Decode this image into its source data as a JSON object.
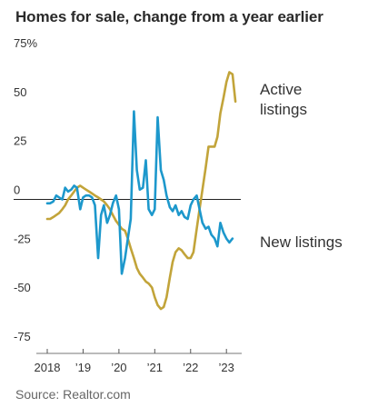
{
  "chart_data": {
    "type": "line",
    "title": "Homes for sale, change from a year earlier",
    "source": "Source: Realtor.com",
    "y_unit_label": "75%",
    "y_ticks": [
      {
        "value": 75,
        "label": "75%"
      },
      {
        "value": 50,
        "label": "50"
      },
      {
        "value": 25,
        "label": "25"
      },
      {
        "value": 0,
        "label": "0"
      },
      {
        "value": -25,
        "label": "-25"
      },
      {
        "value": -50,
        "label": "-50"
      },
      {
        "value": -75,
        "label": "-75"
      }
    ],
    "ylim": [
      -75,
      75
    ],
    "xlim": [
      2018,
      2023.35
    ],
    "x_ticks": [
      {
        "value": 2018,
        "label": "2018"
      },
      {
        "value": 2019,
        "label": "’19"
      },
      {
        "value": 2020,
        "label": "’20"
      },
      {
        "value": 2021,
        "label": "’21"
      },
      {
        "value": 2022,
        "label": "’22"
      },
      {
        "value": 2023,
        "label": "’23"
      }
    ],
    "grid": false,
    "series": [
      {
        "name_lines": [
          "Active",
          "listings"
        ],
        "color": "#c2a43a",
        "points": [
          [
            2018.0,
            -10
          ],
          [
            2018.08,
            -10
          ],
          [
            2018.17,
            -9
          ],
          [
            2018.25,
            -8
          ],
          [
            2018.33,
            -7
          ],
          [
            2018.42,
            -5
          ],
          [
            2018.5,
            -3
          ],
          [
            2018.58,
            0
          ],
          [
            2018.67,
            2
          ],
          [
            2018.75,
            4
          ],
          [
            2018.83,
            6
          ],
          [
            2018.92,
            7
          ],
          [
            2019.0,
            6
          ],
          [
            2019.08,
            5
          ],
          [
            2019.17,
            4
          ],
          [
            2019.25,
            3
          ],
          [
            2019.33,
            2
          ],
          [
            2019.42,
            1
          ],
          [
            2019.5,
            0
          ],
          [
            2019.58,
            -1
          ],
          [
            2019.67,
            -3
          ],
          [
            2019.75,
            -5
          ],
          [
            2019.83,
            -8
          ],
          [
            2019.92,
            -11
          ],
          [
            2020.0,
            -13
          ],
          [
            2020.08,
            -15
          ],
          [
            2020.17,
            -16
          ],
          [
            2020.25,
            -20
          ],
          [
            2020.33,
            -25
          ],
          [
            2020.42,
            -30
          ],
          [
            2020.5,
            -35
          ],
          [
            2020.58,
            -38
          ],
          [
            2020.67,
            -40
          ],
          [
            2020.75,
            -42
          ],
          [
            2020.83,
            -43
          ],
          [
            2020.92,
            -45
          ],
          [
            2021.0,
            -50
          ],
          [
            2021.08,
            -54
          ],
          [
            2021.17,
            -56
          ],
          [
            2021.25,
            -55
          ],
          [
            2021.33,
            -50
          ],
          [
            2021.42,
            -40
          ],
          [
            2021.5,
            -32
          ],
          [
            2021.58,
            -27
          ],
          [
            2021.67,
            -25
          ],
          [
            2021.75,
            -26
          ],
          [
            2021.83,
            -28
          ],
          [
            2021.92,
            -30
          ],
          [
            2022.0,
            -30
          ],
          [
            2022.08,
            -27
          ],
          [
            2022.17,
            -15
          ],
          [
            2022.25,
            -5
          ],
          [
            2022.33,
            5
          ],
          [
            2022.42,
            16
          ],
          [
            2022.5,
            27
          ],
          [
            2022.58,
            27
          ],
          [
            2022.67,
            27
          ],
          [
            2022.75,
            32
          ],
          [
            2022.83,
            44
          ],
          [
            2022.92,
            52
          ],
          [
            2023.0,
            60
          ],
          [
            2023.08,
            65
          ],
          [
            2023.17,
            64
          ],
          [
            2023.25,
            50
          ]
        ]
      },
      {
        "name_lines": [
          "New listings"
        ],
        "color": "#1d98cc",
        "points": [
          [
            2018.0,
            -2
          ],
          [
            2018.08,
            -2
          ],
          [
            2018.17,
            -1
          ],
          [
            2018.25,
            2
          ],
          [
            2018.33,
            1
          ],
          [
            2018.42,
            0
          ],
          [
            2018.5,
            6
          ],
          [
            2018.58,
            4
          ],
          [
            2018.67,
            5
          ],
          [
            2018.75,
            7
          ],
          [
            2018.83,
            6
          ],
          [
            2018.92,
            -5
          ],
          [
            2019.0,
            1
          ],
          [
            2019.08,
            2
          ],
          [
            2019.17,
            2
          ],
          [
            2019.25,
            1
          ],
          [
            2019.33,
            -3
          ],
          [
            2019.42,
            -30
          ],
          [
            2019.5,
            -8
          ],
          [
            2019.58,
            -3
          ],
          [
            2019.67,
            -12
          ],
          [
            2019.75,
            -8
          ],
          [
            2019.83,
            -2
          ],
          [
            2019.92,
            2
          ],
          [
            2020.0,
            -5
          ],
          [
            2020.08,
            -38
          ],
          [
            2020.17,
            -30
          ],
          [
            2020.25,
            -20
          ],
          [
            2020.33,
            -10
          ],
          [
            2020.42,
            45
          ],
          [
            2020.5,
            15
          ],
          [
            2020.58,
            5
          ],
          [
            2020.67,
            6
          ],
          [
            2020.75,
            20
          ],
          [
            2020.83,
            -5
          ],
          [
            2020.92,
            -8
          ],
          [
            2021.0,
            -5
          ],
          [
            2021.08,
            42
          ],
          [
            2021.17,
            15
          ],
          [
            2021.25,
            10
          ],
          [
            2021.33,
            2
          ],
          [
            2021.42,
            -4
          ],
          [
            2021.5,
            -6
          ],
          [
            2021.58,
            -3
          ],
          [
            2021.67,
            -8
          ],
          [
            2021.75,
            -6
          ],
          [
            2021.83,
            -9
          ],
          [
            2021.92,
            -10
          ],
          [
            2022.0,
            -3
          ],
          [
            2022.08,
            0
          ],
          [
            2022.17,
            2
          ],
          [
            2022.25,
            -5
          ],
          [
            2022.33,
            -12
          ],
          [
            2022.42,
            -15
          ],
          [
            2022.5,
            -14
          ],
          [
            2022.58,
            -18
          ],
          [
            2022.67,
            -20
          ],
          [
            2022.75,
            -24
          ],
          [
            2022.83,
            -12
          ],
          [
            2022.92,
            -17
          ],
          [
            2023.0,
            -20
          ],
          [
            2023.08,
            -22
          ],
          [
            2023.17,
            -20
          ]
        ]
      }
    ]
  }
}
